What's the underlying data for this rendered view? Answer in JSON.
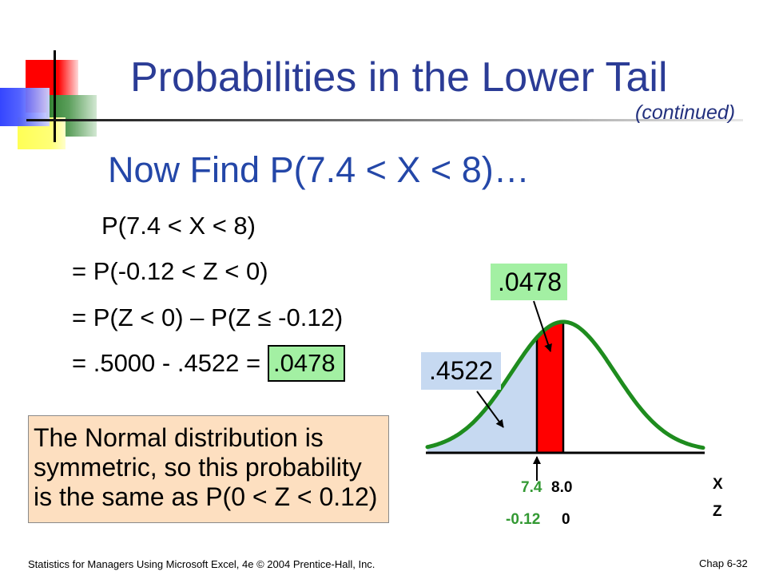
{
  "title": "Probabilities in the Lower Tail",
  "continued": "(continued)",
  "heading": "Now Find P(7.4 < X < 8)…",
  "derivation": {
    "step_1": "P(7.4 < X < 8)",
    "step_2": "= P(-0.12 < Z < 0)",
    "step_3": "= P(Z < 0) – P(Z ≤ -0.12)",
    "step_4": "= .5000 - .4522 =",
    "result": ".0478"
  },
  "note": {
    "lines": [
      "The Normal distribution is",
      "symmetric, so this probability",
      "is the same as P(0 < Z < 0.12)"
    ]
  },
  "diagram": {
    "interval_probability": ".0478",
    "lower_tail_probability": ".4522",
    "x_lower": "7.4",
    "x_upper": "8.0",
    "z_lower": "-0.12",
    "z_upper": "0",
    "x_axis_label": "X",
    "z_axis_label": "Z"
  },
  "footer": {
    "source": "Statistics for Managers Using Microsoft Excel, 4e © 2004 Prentice-Hall, Inc.",
    "page": "Chap 6-32"
  },
  "colors": {
    "title": "#2b3c96",
    "continued": "#23317e",
    "heading": "#2447a8",
    "curve": "#1e8c1e",
    "tail_fill": "#c6d9f1",
    "interval_fill": "#ff0000",
    "highlight_green": "#a3f0a3",
    "note_fill": "#fddfc0",
    "green_label": "#339933"
  }
}
